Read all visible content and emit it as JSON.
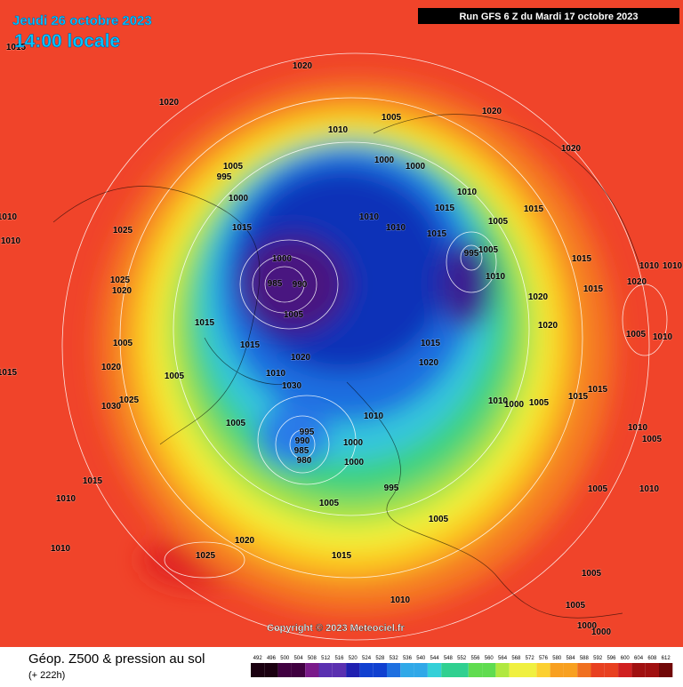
{
  "header": {
    "date": "Jeudi 26 octobre 2023",
    "time": "14:00 locale",
    "run": "Run GFS 6 Z du Mardi 17 octobre 2023"
  },
  "copyright": "Copyright © 2023 Meteociel.fr",
  "footer": {
    "title": "Géop. Z500 & pression au sol",
    "lead": "(+ 222h)"
  },
  "legend": {
    "values": [
      492,
      496,
      500,
      504,
      508,
      512,
      516,
      520,
      524,
      528,
      532,
      536,
      540,
      544,
      548,
      552,
      556,
      560,
      564,
      568,
      572,
      576,
      580,
      584,
      588,
      592,
      596,
      600,
      604,
      608,
      612
    ]
  },
  "isobar_labels": [
    1015,
    1020,
    1020,
    1005,
    1010,
    1020,
    1020,
    1005,
    1000,
    1000,
    995,
    1000,
    1010,
    1015,
    1010,
    1010,
    1015,
    1005,
    1015,
    1015,
    1010,
    1010,
    1025,
    1000,
    995,
    1005,
    1015,
    1010,
    1010,
    1025,
    1020,
    985,
    990,
    1010,
    1015,
    1020,
    1020,
    1015,
    1005,
    1020,
    1005,
    1015,
    1020,
    1015,
    1005,
    1010,
    1015,
    1020,
    1005,
    1020,
    1010,
    1030,
    1015,
    1010,
    1000,
    1005,
    1015,
    1025,
    1030,
    1010,
    1005,
    995,
    990,
    1000,
    985,
    1010,
    1005,
    980,
    1000,
    1015,
    1010,
    995,
    1005,
    1010,
    1005,
    1005,
    1020,
    1010,
    1015,
    1025,
    1005,
    1010,
    1005,
    1000,
    1000
  ]
}
